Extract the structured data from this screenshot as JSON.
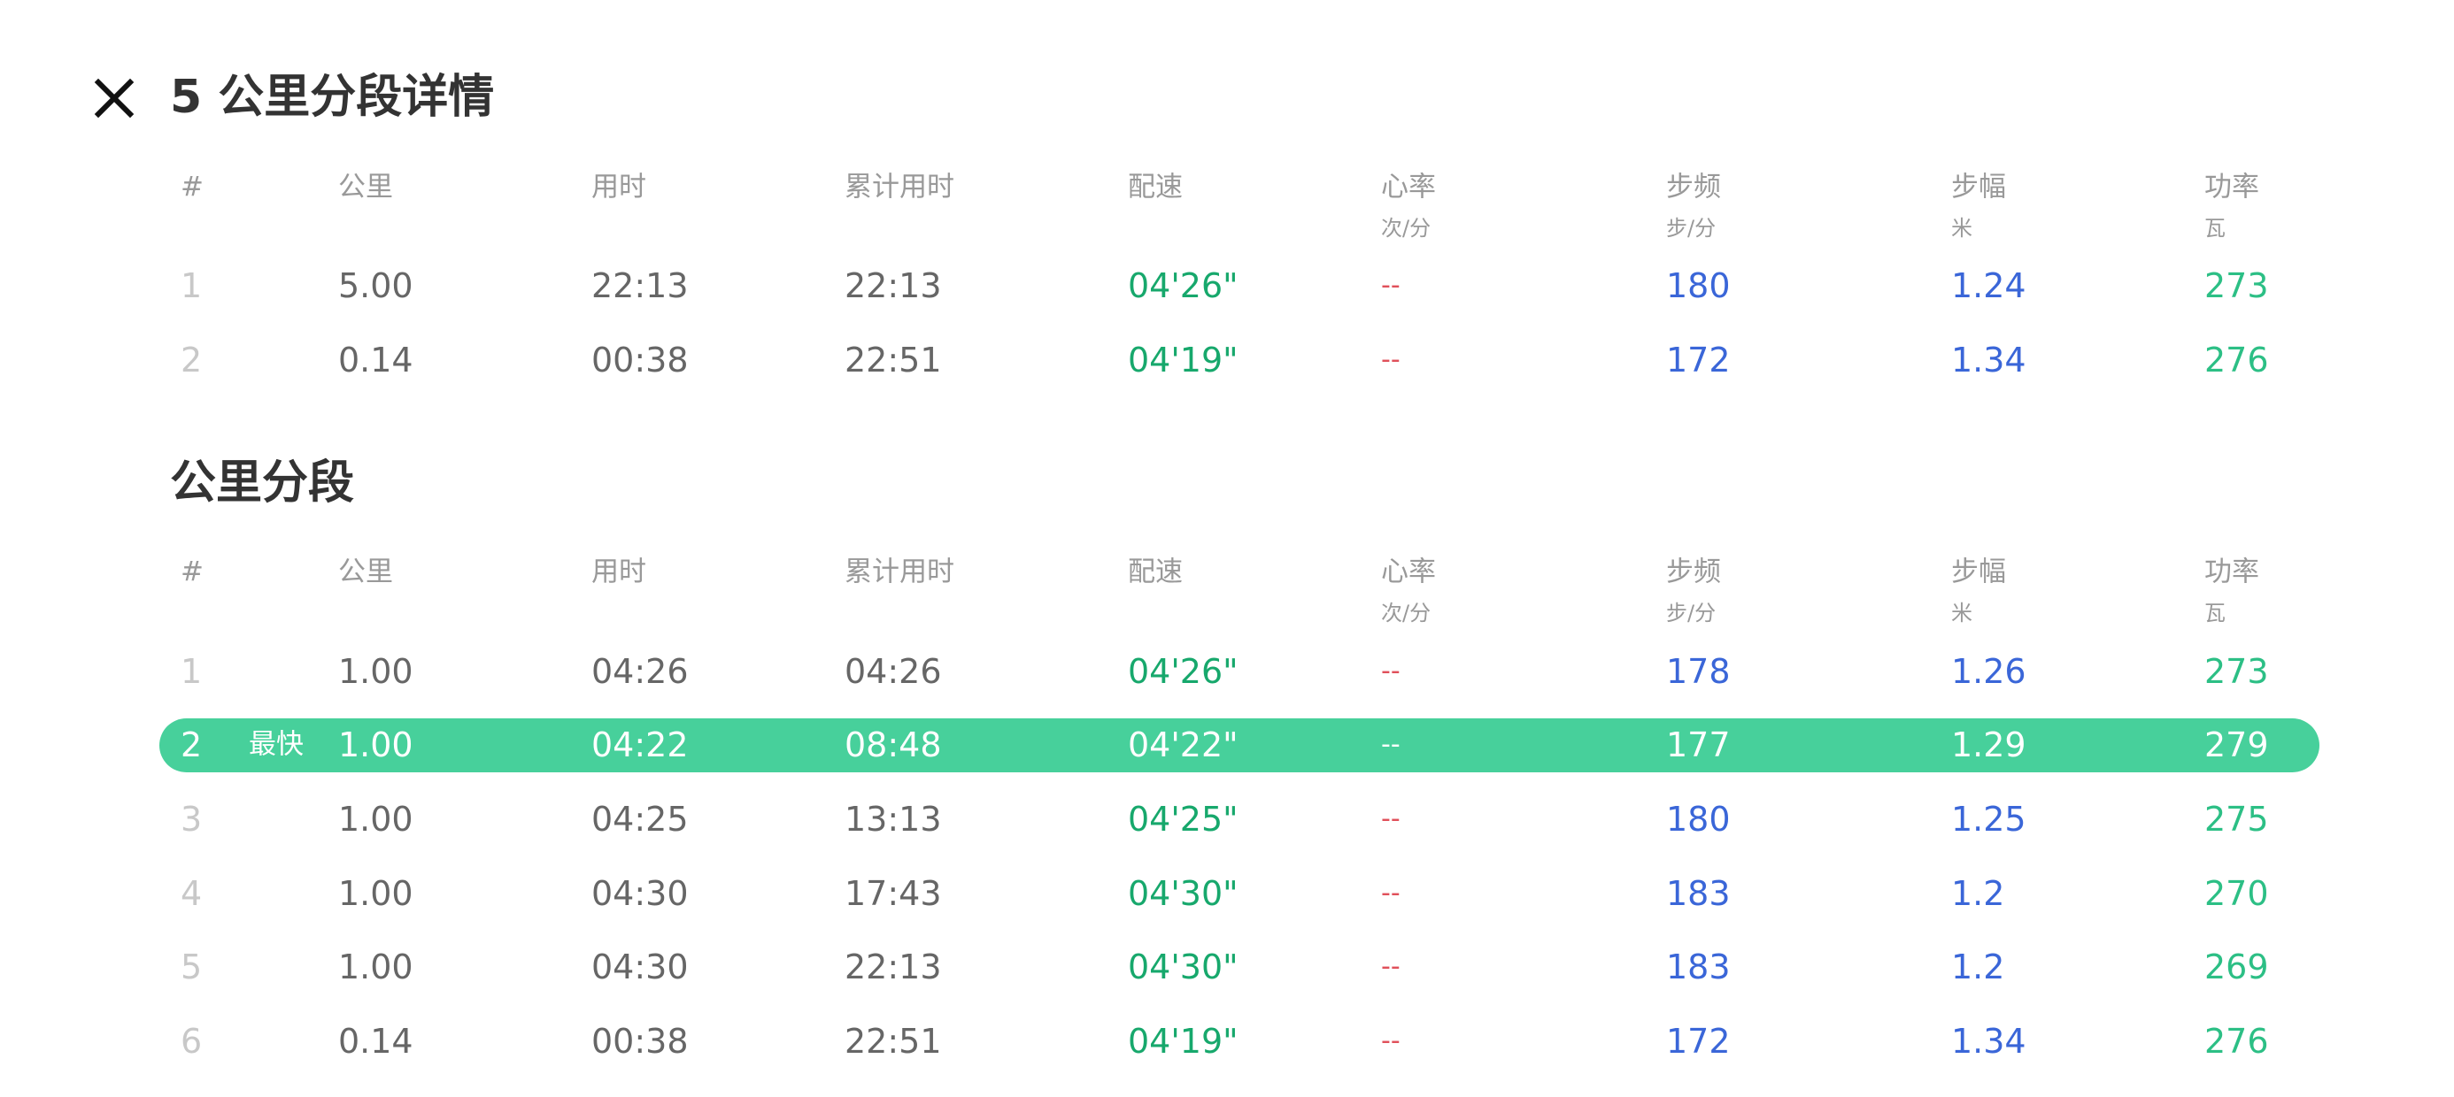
{
  "header": {
    "title": "5 公里分段详情",
    "close_icon": "close-icon"
  },
  "columns": [
    "#",
    "公里",
    "用时",
    "累计用时",
    "配速",
    "心率",
    "步频",
    "步幅",
    "功率"
  ],
  "units": {
    "hr": "次/分",
    "cadence": "步/分",
    "stride": "米",
    "power": "瓦"
  },
  "summary_rows": [
    [
      "1",
      "5.00",
      "22:13",
      "22:13",
      "04'26\"",
      "--",
      "180",
      "1.24",
      "273"
    ],
    [
      "2",
      "0.14",
      "00:38",
      "22:51",
      "04'19\"",
      "--",
      "172",
      "1.34",
      "276"
    ]
  ],
  "km_section": {
    "title": "公里分段",
    "best_badge": "最快",
    "best_index": 2,
    "rows": [
      [
        "1",
        "1.00",
        "04:26",
        "04:26",
        "04'26\"",
        "--",
        "178",
        "1.26",
        "273"
      ],
      [
        "2",
        "1.00",
        "04:22",
        "08:48",
        "04'22\"",
        "--",
        "177",
        "1.29",
        "279"
      ],
      [
        "3",
        "1.00",
        "04:25",
        "13:13",
        "04'25\"",
        "--",
        "180",
        "1.25",
        "275"
      ],
      [
        "4",
        "1.00",
        "04:30",
        "17:43",
        "04'30\"",
        "--",
        "183",
        "1.2",
        "270"
      ],
      [
        "5",
        "1.00",
        "04:30",
        "22:13",
        "04'30\"",
        "--",
        "183",
        "1.2",
        "269"
      ],
      [
        "6",
        "0.14",
        "00:38",
        "22:51",
        "04'19\"",
        "--",
        "172",
        "1.34",
        "276"
      ]
    ]
  },
  "colors": {
    "pace": "#17a86c",
    "cadence": "#3a66d8",
    "power": "#2cbf85",
    "heart_rate": "#e0505a",
    "highlight": "#47d09b"
  }
}
